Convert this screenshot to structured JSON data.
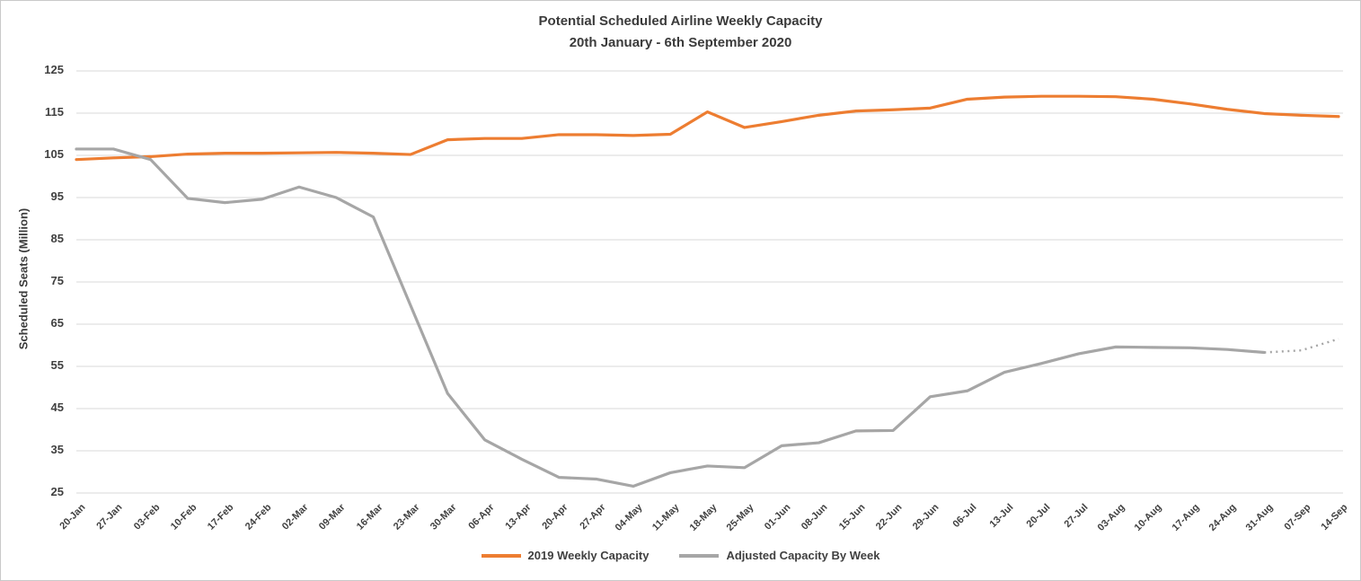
{
  "chart_data": {
    "type": "line",
    "title": "Potential Scheduled Airline Weekly Capacity",
    "subtitle": "20th January - 6th September 2020",
    "xlabel": "",
    "ylabel": "Scheduled Seats (Million)",
    "ylim": [
      25,
      125
    ],
    "yticks": [
      125,
      115,
      105,
      95,
      85,
      75,
      65,
      55,
      45,
      35,
      25
    ],
    "grid": true,
    "legend_position": "bottom",
    "background_color": "#ffffff",
    "gridline_color": "#d9d9d9",
    "text_color": "#404040",
    "categories": [
      "20-Jan",
      "27-Jan",
      "03-Feb",
      "10-Feb",
      "17-Feb",
      "24-Feb",
      "02-Mar",
      "09-Mar",
      "16-Mar",
      "23-Mar",
      "30-Mar",
      "06-Apr",
      "13-Apr",
      "20-Apr",
      "27-Apr",
      "04-May",
      "11-May",
      "18-May",
      "25-May",
      "01-Jun",
      "08-Jun",
      "15-Jun",
      "22-Jun",
      "29-Jun",
      "06-Jul",
      "13-Jul",
      "20-Jul",
      "27-Jul",
      "03-Aug",
      "10-Aug",
      "17-Aug",
      "24-Aug",
      "31-Aug",
      "07-Sep",
      "14-Sep"
    ],
    "series": [
      {
        "name": "2019 Weekly Capacity",
        "color": "#ED7D31",
        "line_style": "solid",
        "values": [
          104.0,
          104.4,
          104.7,
          105.3,
          105.5,
          105.5,
          105.6,
          105.7,
          105.5,
          105.2,
          108.7,
          109.0,
          109.0,
          109.9,
          109.9,
          109.7,
          110.0,
          115.3,
          111.6,
          113.0,
          114.5,
          115.5,
          115.8,
          116.2,
          118.3,
          118.8,
          119.0,
          119.0,
          118.9,
          118.3,
          117.2,
          115.9,
          114.9,
          114.5,
          114.2
        ]
      },
      {
        "name": "Adjusted Capacity By Week",
        "color": "#A6A6A6",
        "line_style": "solid_then_dotted",
        "dotted_from_index": 32,
        "values": [
          106.5,
          106.5,
          104.0,
          94.8,
          93.8,
          94.6,
          97.5,
          95.0,
          90.4,
          69.5,
          48.6,
          37.6,
          33.0,
          28.7,
          28.3,
          26.6,
          29.8,
          31.4,
          31.0,
          36.2,
          36.9,
          39.7,
          39.8,
          47.8,
          49.2,
          53.6,
          55.7,
          58.0,
          59.6,
          59.5,
          59.4,
          59.0,
          58.3,
          58.8,
          61.5
        ]
      }
    ]
  }
}
